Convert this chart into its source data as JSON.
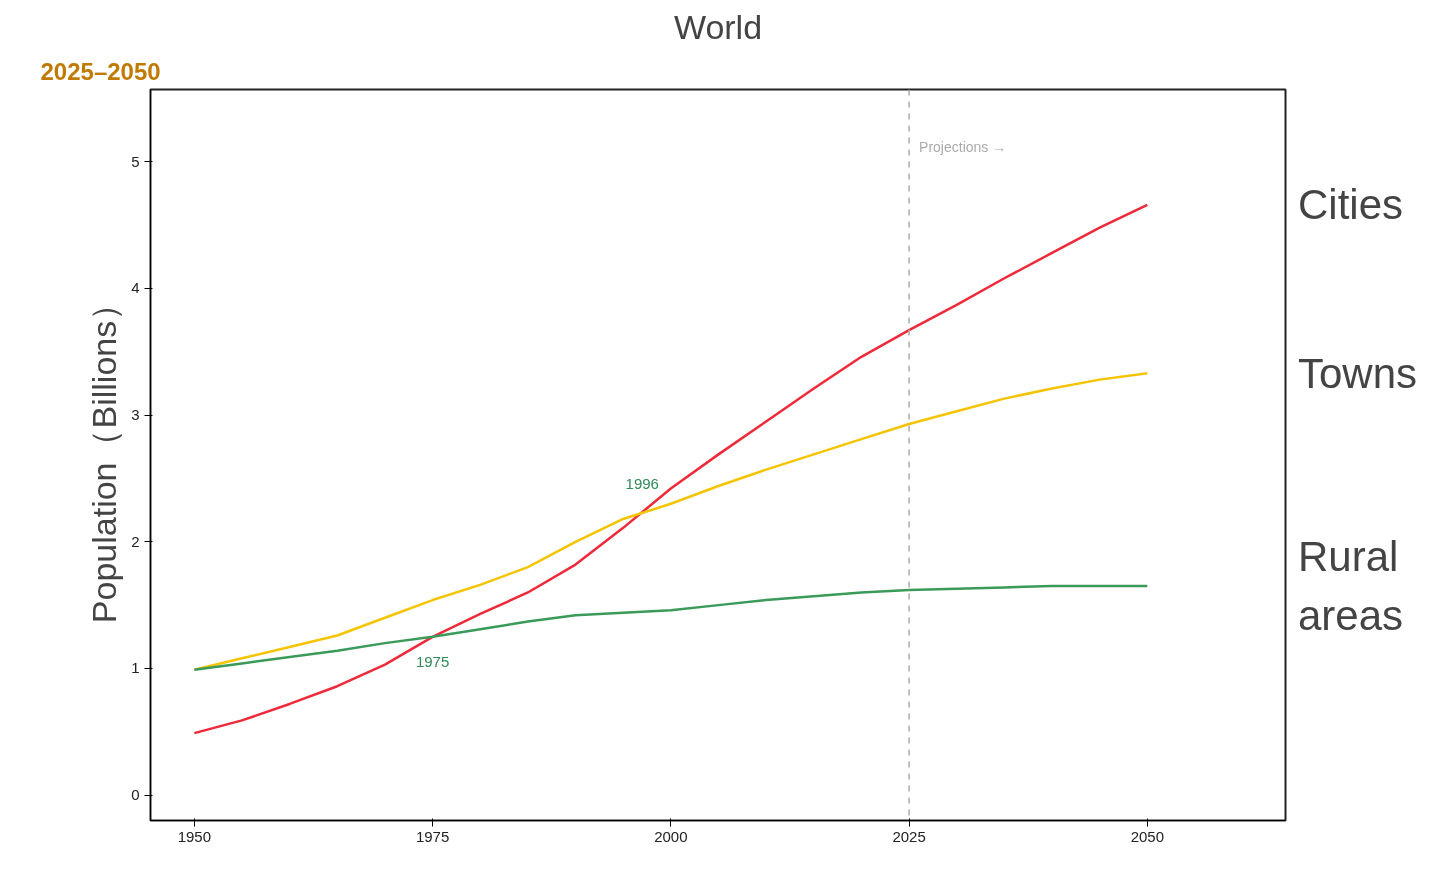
{
  "chart_data": {
    "type": "line",
    "title": "World",
    "ylabel": "Population（Billions）",
    "x": [
      1950,
      1955,
      1960,
      1965,
      1970,
      1975,
      1980,
      1985,
      1990,
      1995,
      2000,
      2005,
      2010,
      2015,
      2020,
      2025,
      2030,
      2035,
      2040,
      2045,
      2050
    ],
    "series": [
      {
        "name": "Cities",
        "color": "#ee2a3a",
        "values": [
          0.49,
          0.59,
          0.72,
          0.86,
          1.03,
          1.25,
          1.43,
          1.6,
          1.82,
          2.11,
          2.42,
          2.69,
          2.95,
          3.21,
          3.46,
          3.67,
          3.87,
          4.08,
          4.28,
          4.48,
          4.66
        ]
      },
      {
        "name": "Towns",
        "color": "#f5c400",
        "values": [
          0.99,
          1.08,
          1.17,
          1.26,
          1.4,
          1.54,
          1.66,
          1.8,
          2.0,
          2.18,
          2.3,
          2.44,
          2.57,
          2.69,
          2.81,
          2.93,
          3.03,
          3.13,
          3.21,
          3.28,
          3.33
        ]
      },
      {
        "name": "Rural areas",
        "color": "#3a9a5a",
        "values": [
          0.99,
          1.04,
          1.09,
          1.14,
          1.2,
          1.25,
          1.31,
          1.37,
          1.42,
          1.44,
          1.46,
          1.5,
          1.54,
          1.57,
          1.6,
          1.62,
          1.63,
          1.64,
          1.65,
          1.65,
          1.65
        ]
      }
    ],
    "xlim": [
      1945.4,
      2064.5
    ],
    "ylim": [
      -0.2,
      5.57
    ],
    "xticks": [
      1950,
      1975,
      2000,
      2025,
      2050
    ],
    "yticks": [
      0,
      1,
      2,
      3,
      4,
      5
    ],
    "ref_lines": [
      {
        "axis": "x",
        "value": 2025,
        "label": "Projections →",
        "color": "#aaaaaa",
        "line_style": "dashed"
      }
    ],
    "annotations": [
      "2025–2050",
      {
        "text": "1975",
        "x": 1975,
        "y": 1.25
      },
      {
        "text": "1996",
        "x": 1997,
        "y": 2.22
      }
    ],
    "grid": false,
    "legend": false,
    "line_style": "solid",
    "marker": "none"
  }
}
